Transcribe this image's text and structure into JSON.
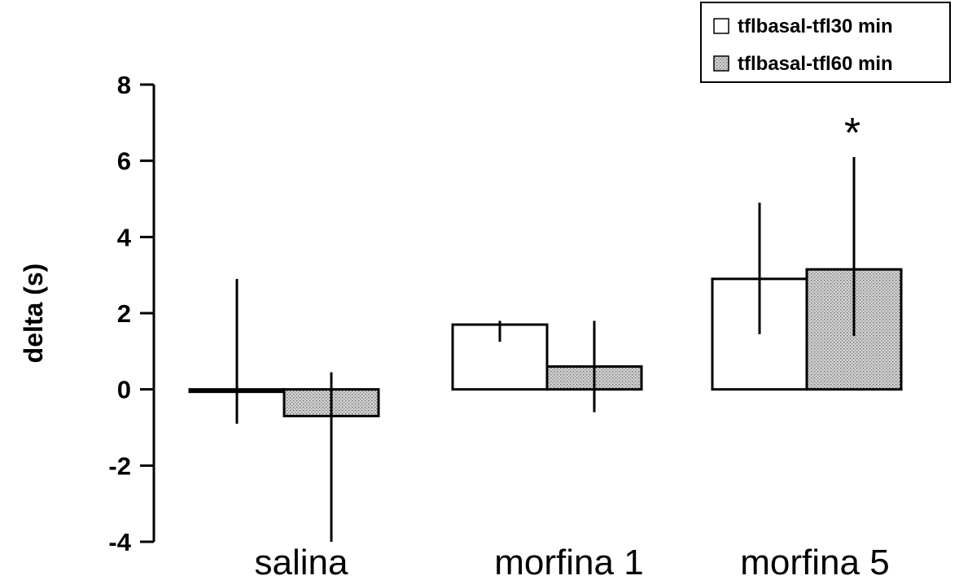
{
  "chart_data": {
    "type": "bar",
    "ylabel": "delta (s)",
    "ylim": [
      -4,
      8
    ],
    "yticks": [
      -4,
      -2,
      0,
      2,
      4,
      6,
      8
    ],
    "categories": [
      "salina",
      "morfina 1",
      "morfina 5"
    ],
    "series": [
      {
        "name": "tflbasal-tfl30 min",
        "color": "#ffffff",
        "pattern": "none",
        "values": [
          0.0,
          1.7,
          2.9
        ],
        "error_low": [
          -0.9,
          1.25,
          1.45
        ],
        "error_high": [
          2.9,
          1.8,
          4.9
        ]
      },
      {
        "name": "tflbasal-tfl60 min",
        "color": "#c8c8c8",
        "pattern": "dotted-gray",
        "values": [
          -0.7,
          0.6,
          3.15
        ],
        "error_low": [
          -4.0,
          -0.6,
          1.4
        ],
        "error_high": [
          0.45,
          1.8,
          6.1
        ]
      }
    ],
    "annotations": [
      {
        "text": "*",
        "category": "morfina 5",
        "series": "tflbasal-tfl60 min"
      }
    ],
    "grid": false,
    "legend_position": "top-right"
  }
}
